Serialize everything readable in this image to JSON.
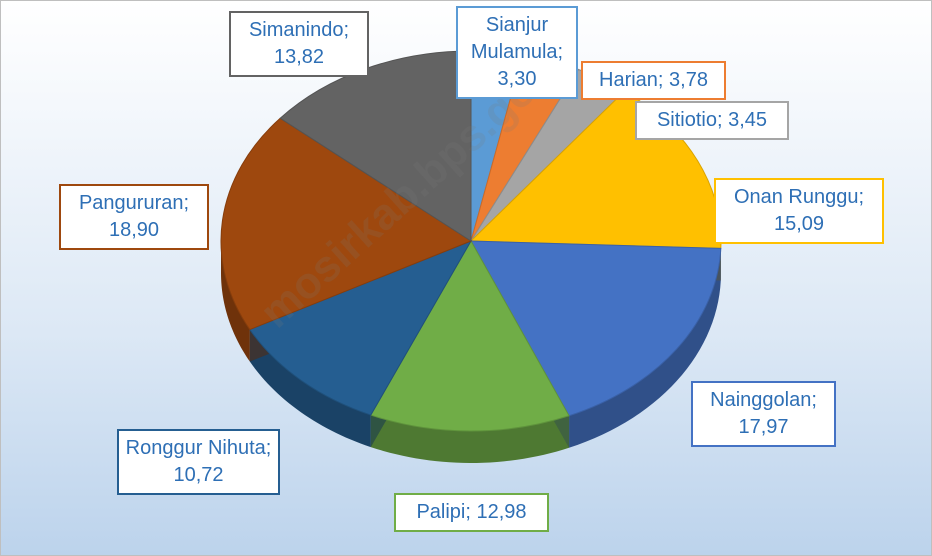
{
  "chart_data": {
    "type": "pie",
    "categories": [
      "Sianjur Mulamula",
      "Harian",
      "Sitiotio",
      "Onan Runggu",
      "Nainggolan",
      "Palipi",
      "Ronggur Nihuta",
      "Pangururan",
      "Simanindo"
    ],
    "values": [
      3.3,
      3.78,
      3.45,
      15.09,
      17.97,
      12.98,
      10.72,
      18.9,
      13.82
    ],
    "value_labels": [
      "Sianjur Mulamula; 3,30",
      "Harian; 3,78",
      "Sitiotio; 3,45",
      "Onan Runggu; 15,09",
      "Nainggolan; 17,97",
      "Palipi; 12,98",
      "Ronggur Nihuta; 10,72",
      "Pangururan; 18,90",
      "Simanindo; 13,82"
    ],
    "colors": [
      "#5b9bd5",
      "#ed7d31",
      "#a5a5a5",
      "#ffc000",
      "#4472c4",
      "#70ad47",
      "#255e91",
      "#9e480e",
      "#636363"
    ],
    "watermark": "mosirkab.bps.go.id"
  }
}
